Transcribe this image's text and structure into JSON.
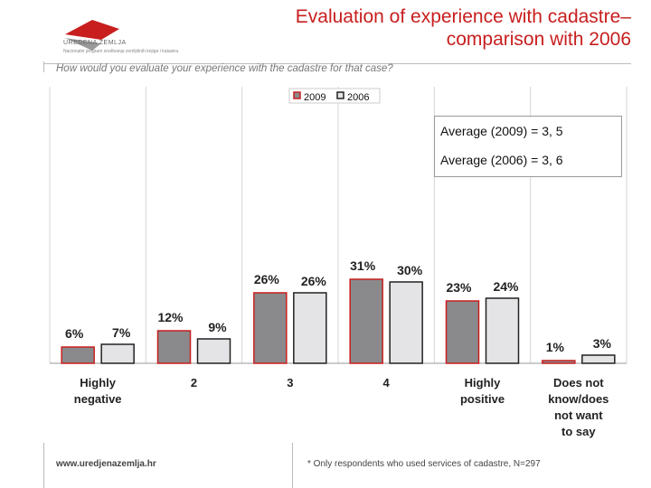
{
  "header": {
    "title_line1": "Evaluation of experience with cadastre–",
    "title_line2": "comparison with 2006",
    "logo_name": "UREDENA ZEMLJA",
    "logo_sub": "Nacionalni program sređivanja zemljišnih knjiga i katastra",
    "question": "How would you evaluate your experience with the cadastre for that case?"
  },
  "averages": {
    "line1": "Average (2009) = 3, 5",
    "line2": "Average (2006) = 3, 6"
  },
  "chart_data": {
    "type": "bar",
    "categories": [
      "Highly negative",
      "2",
      "3",
      "4",
      "Highly positive",
      "Does not know/does not want to say"
    ],
    "series": [
      {
        "name": "2009",
        "values": [
          6,
          12,
          26,
          31,
          23,
          1
        ],
        "labels": [
          "6%",
          "12%",
          "26%",
          "31%",
          "23%",
          "1%"
        ],
        "color": "#8a8a8c",
        "border": "#c81e1e"
      },
      {
        "name": "2006",
        "values": [
          7,
          9,
          26,
          30,
          24,
          3
        ],
        "labels": [
          "7%",
          "9%",
          "26%",
          "30%",
          "24%",
          "3%"
        ],
        "color": "#e4e4e6",
        "border": "#222222"
      }
    ],
    "ylim": [
      0,
      40
    ],
    "grid": "vertical",
    "legend": "top-center"
  },
  "footer": {
    "url": "www.uredjenazemlja.hr",
    "note": "* Only respondents who used services of cadastre, N=297"
  }
}
